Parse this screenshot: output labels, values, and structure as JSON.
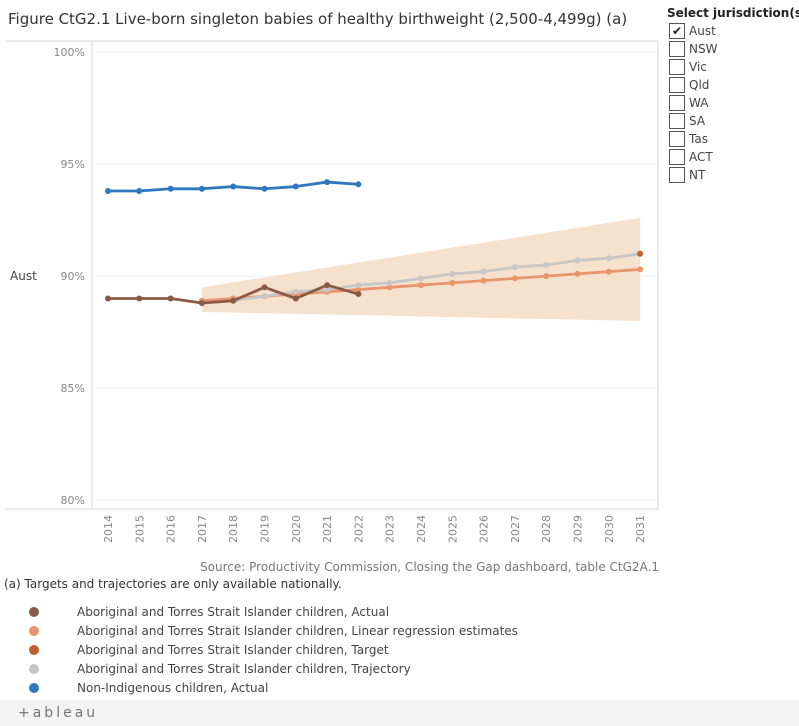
{
  "title": "Figure CtG2.1 Live-born singleton babies of healthy birthweight (2,500-4,499g) (a)",
  "jurisdiction": {
    "title": "Select jurisdiction(s):",
    "options": [
      {
        "label": "Aust",
        "checked": true
      },
      {
        "label": "NSW",
        "checked": false
      },
      {
        "label": "Vic",
        "checked": false
      },
      {
        "label": "Qld",
        "checked": false
      },
      {
        "label": "WA",
        "checked": false
      },
      {
        "label": "SA",
        "checked": false
      },
      {
        "label": "Tas",
        "checked": false
      },
      {
        "label": "ACT",
        "checked": false
      },
      {
        "label": "NT",
        "checked": false
      }
    ]
  },
  "chart_data": {
    "type": "line",
    "title": "Figure CtG2.1 Live-born singleton babies of healthy birthweight (2,500-4,499g) (a)",
    "row_label": "Aust",
    "x": [
      2014,
      2015,
      2016,
      2017,
      2018,
      2019,
      2020,
      2021,
      2022,
      2023,
      2024,
      2025,
      2026,
      2027,
      2028,
      2029,
      2030,
      2031
    ],
    "x_tick_labels": [
      "2014",
      "2015",
      "2016",
      "2017",
      "2018",
      "2019",
      "2020",
      "2021",
      "2022",
      "2023",
      "2024",
      "2025",
      "2026",
      "2027",
      "2028",
      "2029",
      "2030",
      "2031"
    ],
    "y_ticks": [
      80,
      85,
      90,
      95,
      100
    ],
    "y_tick_labels": [
      "80%",
      "85%",
      "90%",
      "95%",
      "100%"
    ],
    "ylim": [
      79.6,
      100.5
    ],
    "grid": true,
    "band": {
      "name": "Trajectory range",
      "color": "#f5dcc4",
      "x": [
        2017,
        2031
      ],
      "upper": [
        89.5,
        92.6
      ],
      "lower": [
        88.4,
        88.0
      ]
    },
    "series": [
      {
        "name": "Aboriginal and Torres Strait Islander children, Linear regression estimates",
        "color": "#e8956b",
        "x": [
          2017,
          2018,
          2019,
          2020,
          2021,
          2022,
          2023,
          2024,
          2025,
          2026,
          2027,
          2028,
          2029,
          2030,
          2031
        ],
        "values": [
          88.9,
          89.0,
          89.1,
          89.2,
          89.3,
          89.4,
          89.5,
          89.6,
          89.7,
          89.8,
          89.9,
          90.0,
          90.1,
          90.2,
          90.3
        ]
      },
      {
        "name": "Aboriginal and Torres Strait Islander children, Trajectory",
        "color": "#c7c7c7",
        "x": [
          2017,
          2018,
          2019,
          2020,
          2021,
          2022,
          2023,
          2024,
          2025,
          2026,
          2027,
          2028,
          2029,
          2030,
          2031
        ],
        "values": [
          88.8,
          88.9,
          89.1,
          89.3,
          89.4,
          89.6,
          89.7,
          89.9,
          90.1,
          90.2,
          90.4,
          90.5,
          90.7,
          90.8,
          91.0
        ]
      },
      {
        "name": "Aboriginal and Torres Strait Islander children, Target",
        "color": "#c0602e",
        "x": [
          2031
        ],
        "values": [
          91.0
        ]
      },
      {
        "name": "Aboriginal and Torres Strait Islander children, Actual",
        "color": "#8b5a44",
        "x": [
          2014,
          2015,
          2016,
          2017,
          2018,
          2019,
          2020,
          2021,
          2022
        ],
        "values": [
          89.0,
          89.0,
          89.0,
          88.8,
          88.9,
          89.5,
          89.0,
          89.6,
          89.2
        ]
      },
      {
        "name": "Non-Indigenous children, Actual",
        "color": "#2e78bd",
        "x": [
          2014,
          2015,
          2016,
          2017,
          2018,
          2019,
          2020,
          2021,
          2022
        ],
        "values": [
          93.8,
          93.8,
          93.9,
          93.9,
          94.0,
          93.9,
          94.0,
          94.2,
          94.1
        ]
      }
    ]
  },
  "source": "Source: Productivity Commission, Closing the Gap dashboard, table CtG2A.1",
  "note": "(a) Targets and trajectories are only available nationally.",
  "legend": [
    {
      "label": "Aboriginal and Torres Strait Islander children, Actual",
      "color": "#8b5a44"
    },
    {
      "label": "Aboriginal and Torres Strait Islander children, Linear regression estimates",
      "color": "#e8956b"
    },
    {
      "label": "Aboriginal and Torres Strait Islander children, Target",
      "color": "#c0602e"
    },
    {
      "label": "Aboriginal and Torres Strait Islander children, Trajectory",
      "color": "#c7c7c7"
    },
    {
      "label": "Non-Indigenous children, Actual",
      "color": "#2e78bd"
    }
  ],
  "footer": {
    "logo": "+ableau"
  }
}
